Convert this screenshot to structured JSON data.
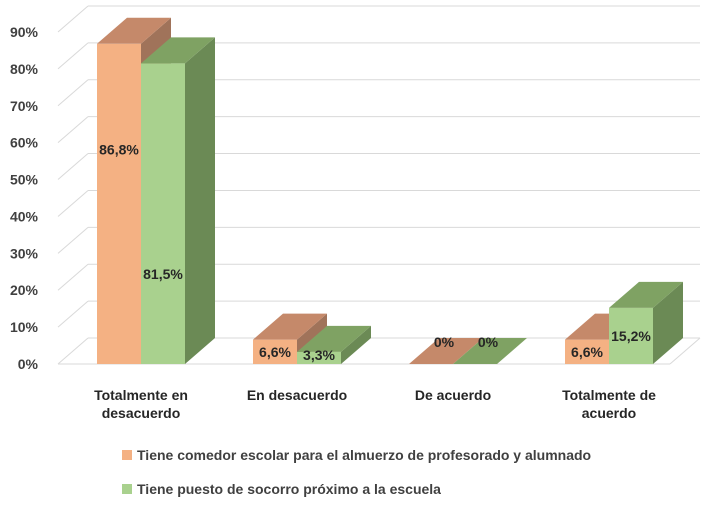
{
  "chart_data": {
    "type": "bar",
    "categories": [
      [
        "Totalmente en",
        "desacuerdo"
      ],
      [
        "En desacuerdo"
      ],
      [
        "De acuerdo"
      ],
      [
        "Totalmente de",
        "acuerdo"
      ]
    ],
    "series": [
      {
        "name": "Tiene comedor escolar para el almuerzo de profesorado y alumnado",
        "values": [
          86.8,
          6.6,
          0,
          6.6
        ],
        "labels": [
          "86,8%",
          "6,6%",
          "0%",
          "6,6%"
        ],
        "color": "#f4b183",
        "side_color": "#a0735a",
        "top_color": "#c5896a"
      },
      {
        "name": "Tiene puesto de socorro próximo a la escuela",
        "values": [
          81.5,
          3.3,
          0,
          15.2
        ],
        "labels": [
          "81,5%",
          "3,3%",
          "0%",
          "15,2%"
        ],
        "color": "#a9d18e",
        "side_color": "#6b8a55",
        "top_color": "#7fa263"
      }
    ],
    "yticks": [
      "0%",
      "10%",
      "20%",
      "30%",
      "40%",
      "50%",
      "60%",
      "70%",
      "80%",
      "90%"
    ],
    "ylim": [
      0,
      90
    ],
    "grid": true,
    "three_d": true,
    "legend_position": "bottom"
  }
}
